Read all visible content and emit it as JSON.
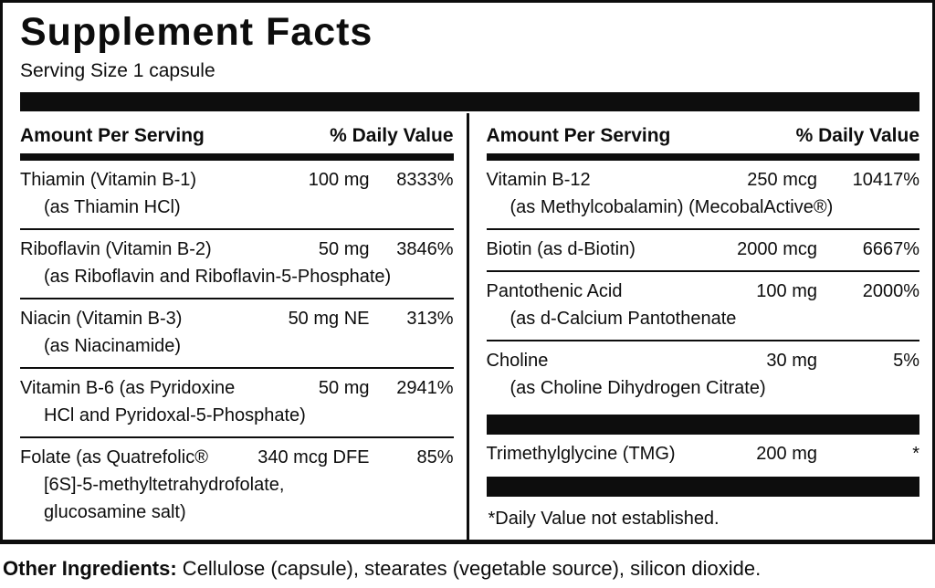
{
  "label": {
    "title": "Supplement Facts",
    "serving_size": "Serving Size 1 capsule",
    "headers": {
      "amount": "Amount Per Serving",
      "daily_value": "% Daily Value"
    },
    "left_rows": [
      {
        "name": "Thiamin (Vitamin B-1)",
        "amount": "100 mg",
        "dv": "8333%",
        "sub": [
          "(as Thiamin HCl)"
        ]
      },
      {
        "name": "Riboflavin (Vitamin B-2)",
        "amount": "50 mg",
        "dv": "3846%",
        "sub": [
          "(as Riboflavin and Riboflavin-5-Phosphate)"
        ]
      },
      {
        "name": "Niacin (Vitamin B-3)",
        "amount": "50 mg NE",
        "dv": "313%",
        "sub": [
          "(as Niacinamide)"
        ]
      },
      {
        "name": "Vitamin B-6 (as Pyridoxine",
        "amount": "50 mg",
        "dv": "2941%",
        "sub": [
          "HCl and Pyridoxal-5-Phosphate)"
        ]
      },
      {
        "name": "Folate (as Quatrefolic®",
        "amount": "340 mcg DFE",
        "dv": "85%",
        "sub": [
          "[6S]-5-methyltetrahydrofolate,",
          "glucosamine salt)"
        ]
      }
    ],
    "right_rows": [
      {
        "name": "Vitamin B-12",
        "amount": "250 mcg",
        "dv": "10417%",
        "sub": [
          "(as Methylcobalamin) (MecobalActive®)"
        ]
      },
      {
        "name": "Biotin (as d-Biotin)",
        "amount": "2000 mcg",
        "dv": "6667%"
      },
      {
        "name": "Pantothenic Acid",
        "amount": "100 mg",
        "dv": "2000%",
        "sub": [
          "(as d-Calcium Pantothenate"
        ]
      },
      {
        "name": "Choline",
        "amount": "30 mg",
        "dv": "5%",
        "sub": [
          "(as Choline Dihydrogen Citrate)"
        ]
      },
      {
        "name": "Trimethylglycine (TMG)",
        "amount": "200 mg",
        "dv": "*"
      }
    ],
    "footnote": "*Daily Value not established.",
    "other_ingredients": {
      "label": "Other Ingredients:",
      "text": " Cellulose (capsule), stearates (vegetable source), silicon dioxide."
    },
    "colors": {
      "ink": "#0d0d0d",
      "paper": "#ffffff"
    }
  }
}
